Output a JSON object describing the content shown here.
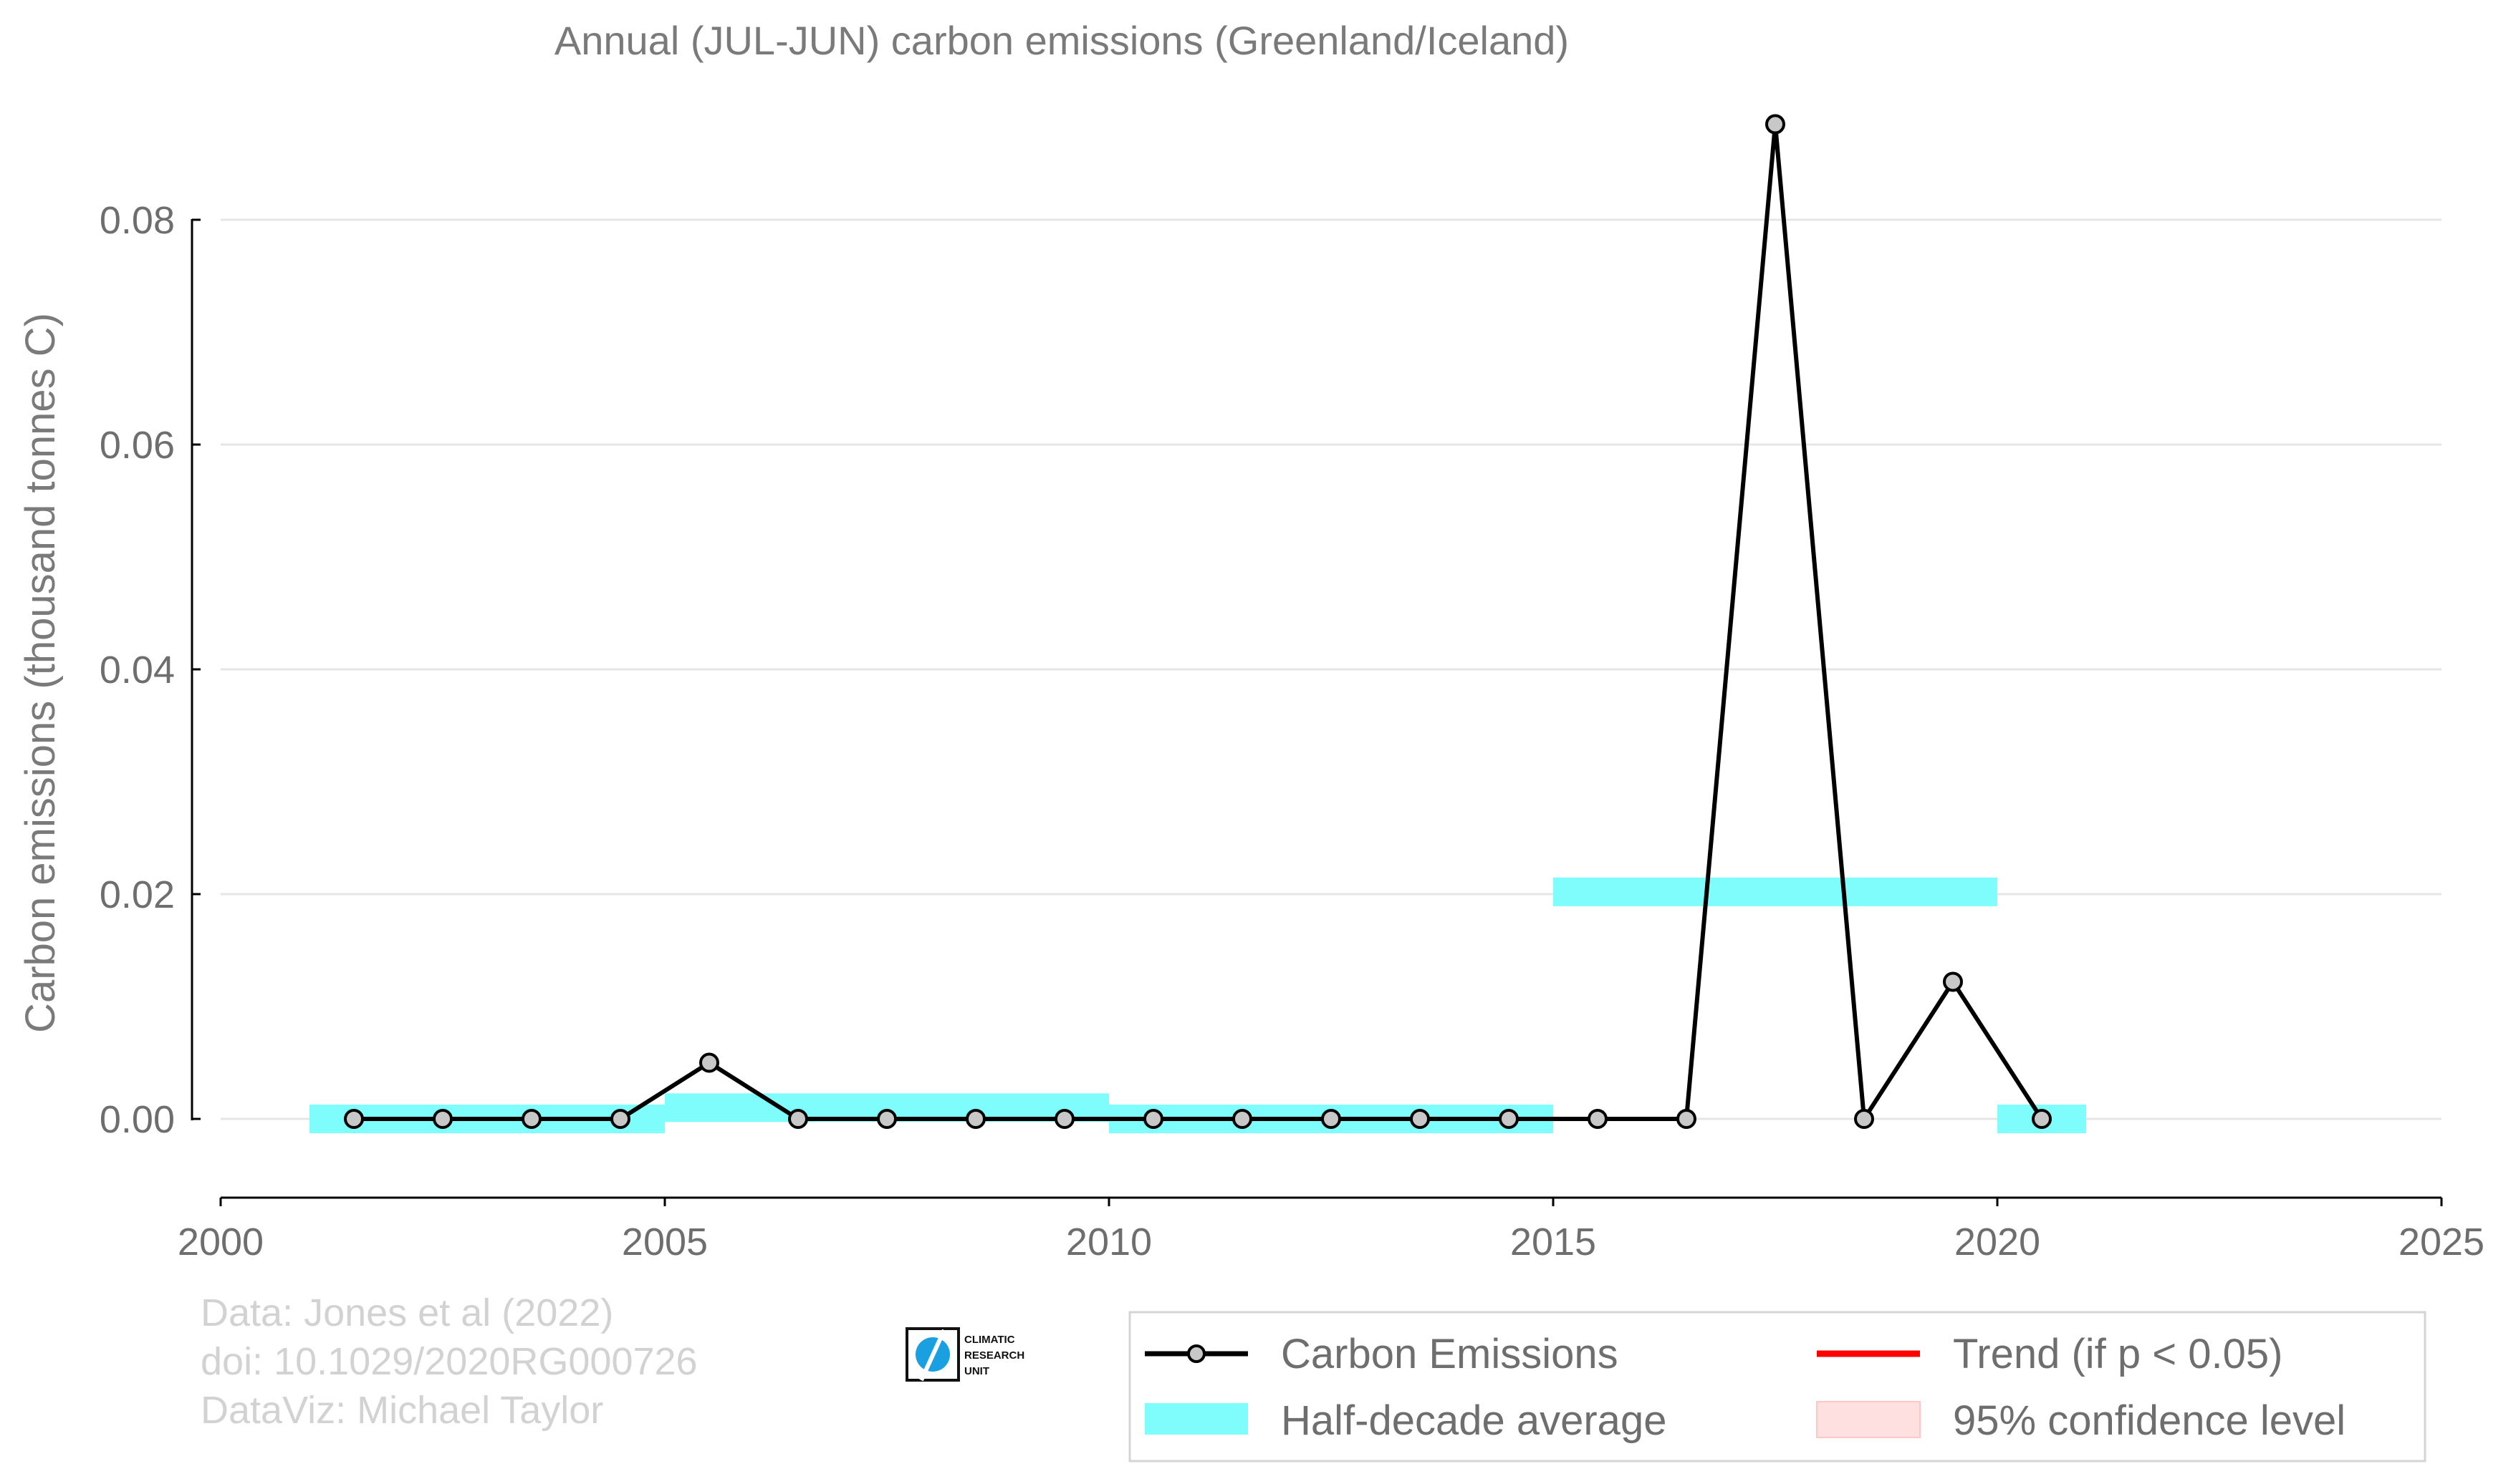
{
  "chart_data": {
    "type": "line",
    "title": "Annual (JUL-JUN) carbon emissions (Greenland/Iceland)",
    "xlabel": "",
    "ylabel": "Carbon emissions (thousand tonnes C)",
    "xlim": [
      2000,
      2025
    ],
    "ylim": [
      -0.007,
      0.09
    ],
    "x_ticks": [
      2000,
      2005,
      2010,
      2015,
      2020,
      2025
    ],
    "x_tick_labels": [
      "2000",
      "2005",
      "2010",
      "2015",
      "2020",
      "2025"
    ],
    "y_ticks": [
      0.0,
      0.02,
      0.04,
      0.06,
      0.08
    ],
    "y_tick_labels": [
      "0.00",
      "0.02",
      "0.04",
      "0.06",
      "0.08"
    ],
    "grid": "horizontal",
    "series": [
      {
        "name": "Carbon Emissions",
        "color": "#000000",
        "marker_fill": "#c8c8c8",
        "x": [
          2001.5,
          2002.5,
          2003.5,
          2004.5,
          2005.5,
          2006.5,
          2007.5,
          2008.5,
          2009.5,
          2010.5,
          2011.5,
          2012.5,
          2013.5,
          2014.5,
          2015.5,
          2016.5,
          2017.5,
          2018.5,
          2019.5,
          2020.5
        ],
        "y": [
          0.0,
          0.0,
          0.0,
          0.0,
          0.005,
          0.0,
          0.0,
          0.0,
          0.0,
          0.0,
          0.0,
          0.0,
          0.0,
          0.0,
          0.0,
          0.0,
          0.0885,
          0.0,
          0.0122,
          0.0
        ]
      },
      {
        "name": "Half-decade average",
        "color": "#7ffcfc",
        "segments": [
          {
            "x0": 2001,
            "x1": 2005,
            "y": 0.0
          },
          {
            "x0": 2005,
            "x1": 2010,
            "y": 0.001
          },
          {
            "x0": 2010,
            "x1": 2015,
            "y": 0.0
          },
          {
            "x0": 2015,
            "x1": 2020,
            "y": 0.0202
          },
          {
            "x0": 2020,
            "x1": 2021,
            "y": 0.0
          }
        ]
      },
      {
        "name": "Trend (if p < 0.05)",
        "color": "#ff0000",
        "values": []
      },
      {
        "name": "95% confidence level",
        "color": "#ffe0e0",
        "values": []
      }
    ],
    "legend": {
      "placement": "bottom-right",
      "entries": [
        "Carbon Emissions",
        "Trend (if p < 0.05)",
        "Half-decade average",
        "95% confidence level"
      ]
    }
  },
  "credits": {
    "line1": "Data: Jones et al (2022)",
    "line2": "doi: 10.1029/2020RG000726",
    "line3": "DataViz: Michael Taylor"
  },
  "logo": {
    "line1": "CLIMATIC",
    "line2": "RESEARCH",
    "line3": "UNIT"
  }
}
